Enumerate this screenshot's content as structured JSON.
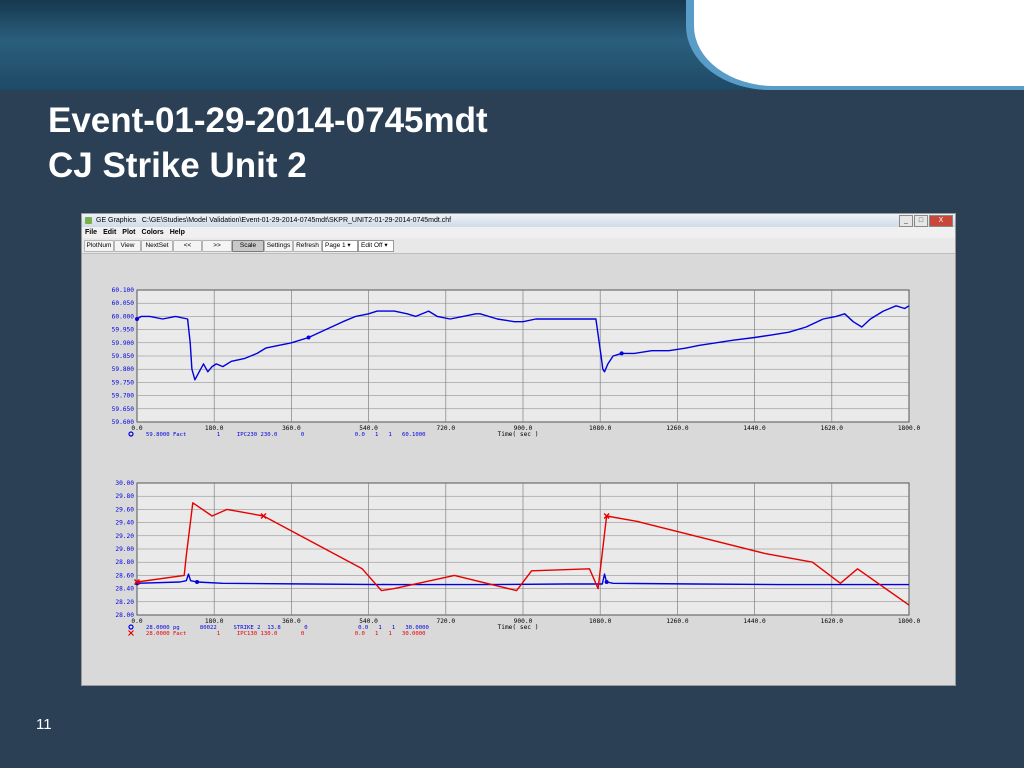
{
  "slide": {
    "title_line1": "Event-01-29-2014-0745mdt",
    "title_line2": "CJ Strike Unit 2",
    "page_number": "11"
  },
  "window": {
    "app_name": "GE Graphics",
    "path": "C:\\GE\\Studies\\Model Validation\\Event-01-29-2014-0745mdt\\SKPR_UNIT2-01-29-2014-0745mdt.chf",
    "controls": [
      "_",
      "□",
      "X"
    ]
  },
  "menu": [
    "File",
    "Edit",
    "Plot",
    "Colors",
    "Help"
  ],
  "toolbar": {
    "buttons": [
      "PlotNum",
      "View",
      "NextSet",
      "<<",
      ">>",
      "Scale",
      "Settings",
      "Refresh"
    ],
    "page_select": "Page 1",
    "edit_select": "Edit Off"
  },
  "colors": {
    "blue": "#0000e0",
    "red": "#e60000",
    "grid": "#808080",
    "plot_bg": "#eaeaea"
  },
  "chart_data": [
    {
      "type": "line",
      "xlabel": "Time( sec )",
      "xlim": [
        0,
        1800
      ],
      "ylim": [
        59.6,
        60.1
      ],
      "x_ticks": [
        "0.0",
        "180.0",
        "360.0",
        "540.0",
        "720.0",
        "900.0",
        "1080.0",
        "1260.0",
        "1440.0",
        "1620.0",
        "1800.0"
      ],
      "y_ticks": [
        "60.100",
        "60.050",
        "60.000",
        "59.950",
        "59.900",
        "59.850",
        "59.800",
        "59.750",
        "59.700",
        "59.650",
        "59.600"
      ],
      "series": [
        {
          "color": "#0000e0",
          "marker": "o",
          "legend": "59.8000 Fact         1     IPC230 230.0       0               0.0   1   1   60.1000",
          "x": [
            0,
            10,
            30,
            60,
            90,
            118,
            124,
            128,
            135,
            145,
            155,
            165,
            175,
            185,
            200,
            220,
            250,
            280,
            300,
            330,
            360,
            400,
            440,
            480,
            510,
            540,
            560,
            580,
            600,
            630,
            650,
            680,
            700,
            730,
            760,
            790,
            800,
            840,
            880,
            900,
            930,
            960,
            1000,
            1040,
            1070,
            1082,
            1086,
            1090,
            1098,
            1110,
            1130,
            1160,
            1200,
            1240,
            1280,
            1310,
            1350,
            1390,
            1440,
            1480,
            1520,
            1560,
            1600,
            1630,
            1650,
            1670,
            1690,
            1710,
            1740,
            1770,
            1790,
            1800
          ],
          "y": [
            59.99,
            60.0,
            60.0,
            59.99,
            60.0,
            59.99,
            59.9,
            59.8,
            59.76,
            59.79,
            59.82,
            59.79,
            59.81,
            59.82,
            59.81,
            59.83,
            59.84,
            59.86,
            59.88,
            59.89,
            59.9,
            59.92,
            59.95,
            59.98,
            60.0,
            60.01,
            60.02,
            60.02,
            60.02,
            60.01,
            60.0,
            60.02,
            60.0,
            59.99,
            60.0,
            60.01,
            60.01,
            59.99,
            59.98,
            59.98,
            59.99,
            59.99,
            59.99,
            59.99,
            59.99,
            59.85,
            59.8,
            59.79,
            59.82,
            59.85,
            59.86,
            59.86,
            59.87,
            59.87,
            59.88,
            59.89,
            59.9,
            59.91,
            59.92,
            59.93,
            59.94,
            59.96,
            59.99,
            60.0,
            60.01,
            59.98,
            59.96,
            59.99,
            60.02,
            60.04,
            60.03,
            60.04
          ]
        }
      ]
    },
    {
      "type": "line",
      "xlabel": "Time( sec )",
      "xlim": [
        0,
        1800
      ],
      "ylim": [
        28.0,
        30.0
      ],
      "x_ticks": [
        "0.0",
        "180.0",
        "360.0",
        "540.0",
        "720.0",
        "900.0",
        "1080.0",
        "1260.0",
        "1440.0",
        "1620.0",
        "1800.0"
      ],
      "y_ticks": [
        "30.00",
        "29.80",
        "29.60",
        "29.40",
        "29.20",
        "29.00",
        "28.80",
        "28.60",
        "28.40",
        "28.20",
        "28.00"
      ],
      "series": [
        {
          "color": "#0000e0",
          "marker": "o",
          "legend": "28.0000 pg      80022     STRIKE 2  13.8       0               0.0   1   1   30.0000",
          "x": [
            0,
            100,
            115,
            120,
            125,
            140,
            200,
            400,
            600,
            800,
            1000,
            1085,
            1090,
            1095,
            1110,
            1300,
            1500,
            1700,
            1800
          ],
          "y": [
            28.48,
            28.5,
            28.52,
            28.62,
            28.52,
            28.5,
            28.48,
            28.47,
            28.46,
            28.46,
            28.47,
            28.47,
            28.62,
            28.5,
            28.48,
            28.47,
            28.46,
            28.46,
            28.46
          ]
        },
        {
          "color": "#e60000",
          "marker": "x",
          "legend": "28.0000 Fact         1     IPC130 130.0       0               0.0   1   1   30.0000",
          "x": [
            0,
            110,
            115,
            130,
            175,
            210,
            295,
            525,
            570,
            600,
            740,
            885,
            920,
            1055,
            1075,
            1095,
            1165,
            1465,
            1575,
            1640,
            1680,
            1800
          ],
          "y": [
            28.5,
            28.6,
            28.9,
            29.7,
            29.5,
            29.6,
            29.5,
            28.7,
            28.37,
            28.4,
            28.6,
            28.37,
            28.67,
            28.7,
            28.4,
            29.5,
            29.42,
            28.93,
            28.8,
            28.48,
            28.7,
            28.15
          ]
        }
      ]
    }
  ]
}
